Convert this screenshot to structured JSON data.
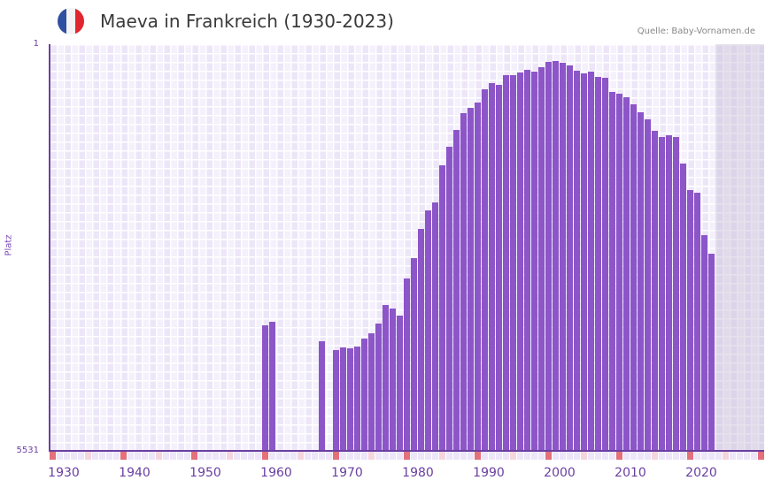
{
  "header": {
    "title": "Maeva in Frankreich (1930-2023)",
    "source": "Quelle: Baby-Vornamen.de",
    "flag_icon": "france-flag-icon",
    "flag_colors": [
      "#2f4fa1",
      "#f4f4f4",
      "#e0262e"
    ]
  },
  "colors": {
    "bar": "#8c55c8",
    "axis": "#6a3fa0",
    "decade_marker": "#e3707a",
    "half_decade_marker": "#f5d5dd",
    "year_marker": "#ece6f8"
  },
  "chart_data": {
    "type": "bar",
    "title": "Maeva in Frankreich (1930-2023)",
    "xlabel": "",
    "ylabel": "Platz",
    "y_axis_inverted": true,
    "ylim": [
      1,
      5531
    ],
    "y_ticks": [
      "1",
      "5531"
    ],
    "x_ticks": [
      "1930",
      "1940",
      "1950",
      "1960",
      "1970",
      "1980",
      "1990",
      "2000",
      "2010",
      "2020"
    ],
    "x_range": [
      1930,
      2030
    ],
    "future_shaded_from": 2024,
    "grid": true,
    "legend": null,
    "x": [
      1960,
      1961,
      1968,
      1970,
      1971,
      1972,
      1973,
      1974,
      1975,
      1976,
      1977,
      1978,
      1979,
      1980,
      1981,
      1982,
      1983,
      1984,
      1985,
      1986,
      1987,
      1988,
      1989,
      1990,
      1991,
      1992,
      1993,
      1994,
      1995,
      1996,
      1997,
      1998,
      1999,
      2000,
      2001,
      2002,
      2003,
      2004,
      2005,
      2006,
      2007,
      2008,
      2009,
      2010,
      2011,
      2012,
      2013,
      2014,
      2015,
      2016,
      2017,
      2018,
      2019,
      2020,
      2021,
      2022,
      2023
    ],
    "values": [
      3824,
      3776,
      4040,
      4161,
      4124,
      4136,
      4112,
      4004,
      3932,
      3800,
      3547,
      3595,
      3691,
      3186,
      2910,
      2513,
      2261,
      2153,
      1648,
      1396,
      1167,
      939,
      867,
      794,
      614,
      530,
      554,
      422,
      422,
      386,
      350,
      374,
      314,
      241,
      229,
      253,
      290,
      362,
      398,
      374,
      446,
      458,
      650,
      674,
      722,
      818,
      927,
      1023,
      1179,
      1263,
      1239,
      1263,
      1624,
      1984,
      2020,
      2597,
      2850
    ]
  }
}
